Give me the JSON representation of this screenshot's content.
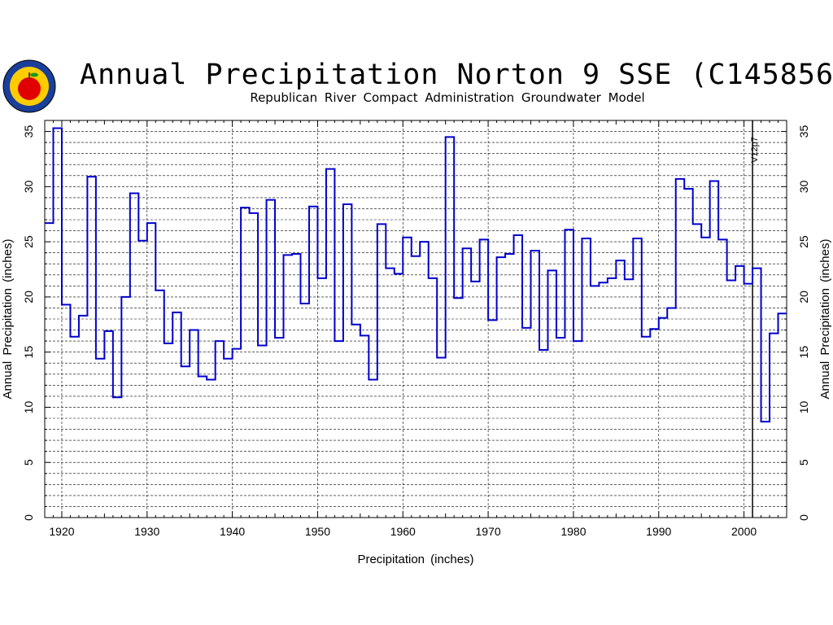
{
  "title": "Annual Precipitation Norton 9 SSE (C145856)",
  "subtitle": "Republican River Compact Administration Groundwater Model",
  "logo_text": "NEBRASKA KANSAS COLORADO",
  "colors": {
    "series": "#0000cc",
    "grid": "#000000",
    "background": "#ffffff"
  },
  "chart_data": {
    "type": "line",
    "step": true,
    "title": "Annual Precipitation Norton 9 SSE (C145856)",
    "subtitle": "Republican River Compact Administration Groundwater Model",
    "xlabel": "Precipitation  (inches)",
    "ylabel": "Annual Precipitation  (inches)",
    "xlim": [
      1918,
      2005
    ],
    "ylim": [
      0,
      36
    ],
    "x_ticks": [
      1920,
      1930,
      1940,
      1950,
      1960,
      1970,
      1980,
      1990,
      2000
    ],
    "y_ticks": [
      0,
      5,
      10,
      15,
      20,
      25,
      30,
      35
    ],
    "grid": true,
    "annotation": {
      "text": "V12p7",
      "x": 2001
    },
    "series": [
      {
        "years": [
          1918,
          1919,
          1920,
          1921,
          1922,
          1923,
          1924,
          1925,
          1926,
          1927,
          1928,
          1929,
          1930,
          1931,
          1932,
          1933,
          1934,
          1935,
          1936,
          1937,
          1938,
          1939,
          1940,
          1941,
          1942,
          1943,
          1944,
          1945,
          1946,
          1947,
          1948,
          1949,
          1950,
          1951,
          1952,
          1953,
          1954,
          1955,
          1956,
          1957,
          1958,
          1959,
          1960,
          1961,
          1962,
          1963,
          1964,
          1965,
          1966,
          1967,
          1968,
          1969,
          1970,
          1971,
          1972,
          1973,
          1974,
          1975,
          1976,
          1977,
          1978,
          1979,
          1980,
          1981,
          1982,
          1983,
          1984,
          1985,
          1986,
          1987,
          1988,
          1989,
          1990,
          1991,
          1992,
          1993,
          1994,
          1995,
          1996,
          1997,
          1998,
          1999,
          2000,
          2001,
          2002,
          2003,
          2004
        ],
        "values": [
          26.7,
          35.3,
          19.3,
          16.4,
          18.3,
          30.9,
          14.4,
          16.9,
          10.9,
          20.0,
          29.4,
          25.1,
          26.7,
          20.6,
          15.8,
          18.6,
          13.7,
          17.0,
          12.8,
          12.5,
          16.0,
          14.4,
          15.3,
          28.1,
          27.6,
          15.6,
          28.8,
          16.3,
          23.8,
          23.9,
          19.4,
          28.2,
          21.7,
          31.6,
          16.0,
          28.4,
          17.5,
          16.5,
          12.5,
          26.6,
          22.6,
          22.1,
          25.4,
          23.7,
          25.0,
          21.7,
          14.5,
          34.5,
          19.9,
          24.4,
          21.4,
          25.2,
          17.9,
          23.6,
          23.9,
          25.6,
          17.2,
          24.2,
          15.2,
          22.4,
          16.3,
          26.1,
          16.0,
          25.3,
          21.0,
          21.3,
          21.7,
          23.3,
          21.6,
          25.3,
          16.4,
          17.1,
          18.1,
          19.0,
          30.7,
          29.8,
          26.6,
          25.4,
          30.5,
          25.2,
          21.5,
          22.8,
          21.2,
          22.6,
          8.7,
          16.7,
          18.5
        ]
      }
    ]
  }
}
